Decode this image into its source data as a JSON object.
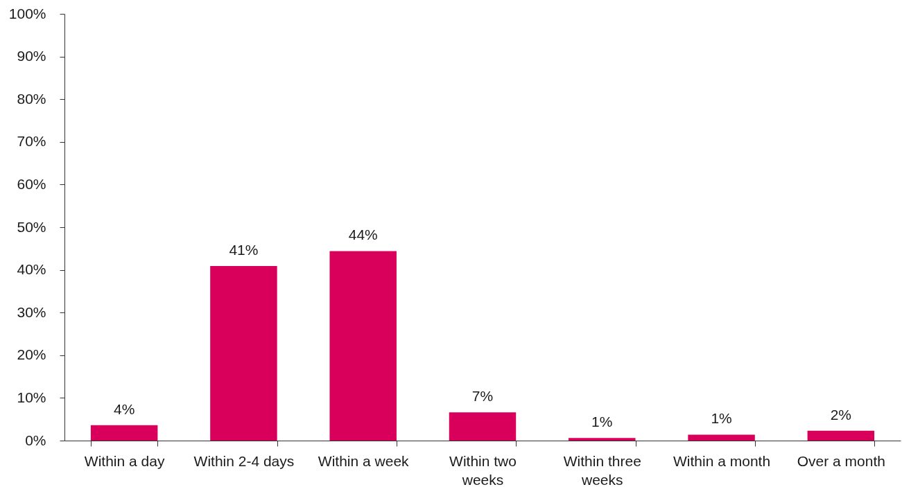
{
  "chart_data": {
    "type": "bar",
    "categories": [
      "Within a day",
      "Within 2-4 days",
      "Within a week",
      "Within two weeks",
      "Within three weeks",
      "Within a month",
      "Over a month"
    ],
    "values": [
      3.6,
      40.9,
      44.4,
      6.6,
      0.6,
      1.4,
      2.3
    ],
    "value_labels": [
      "4%",
      "41%",
      "44%",
      "7%",
      "1%",
      "1%",
      "2%"
    ],
    "color": "#d9005b",
    "ylim": [
      0,
      100
    ],
    "yticks": [
      {
        "value": 0,
        "label": "0%"
      },
      {
        "value": 10,
        "label": "10%"
      },
      {
        "value": 20,
        "label": "20%"
      },
      {
        "value": 30,
        "label": "30%"
      },
      {
        "value": 40,
        "label": "40%"
      },
      {
        "value": 50,
        "label": "50%"
      },
      {
        "value": 60,
        "label": "60%"
      },
      {
        "value": 70,
        "label": "70%"
      },
      {
        "value": 80,
        "label": "80%"
      },
      {
        "value": 90,
        "label": "90%"
      },
      {
        "value": 100,
        "label": "100%"
      }
    ]
  }
}
